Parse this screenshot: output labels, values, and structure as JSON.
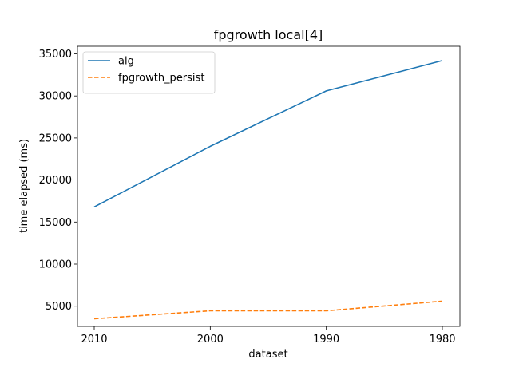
{
  "chart_data": {
    "type": "line",
    "title": "fpgrowth local[4]",
    "xlabel": "dataset",
    "ylabel": "time elapsed (ms)",
    "categories": [
      "2010",
      "2000",
      "1990",
      "1980"
    ],
    "ylim": [
      2600,
      35900
    ],
    "yticks": [
      5000,
      10000,
      15000,
      20000,
      25000,
      30000,
      35000
    ],
    "grid": false,
    "legend_position": "top-left",
    "series": [
      {
        "name": "alg",
        "values": [
          16800,
          24000,
          30600,
          34200
        ],
        "color": "#1f77b4",
        "style": "solid"
      },
      {
        "name": "fpgrowth_persist",
        "values": [
          3500,
          4450,
          4450,
          5600
        ],
        "color": "#ff7f0e",
        "style": "dashed"
      }
    ]
  }
}
